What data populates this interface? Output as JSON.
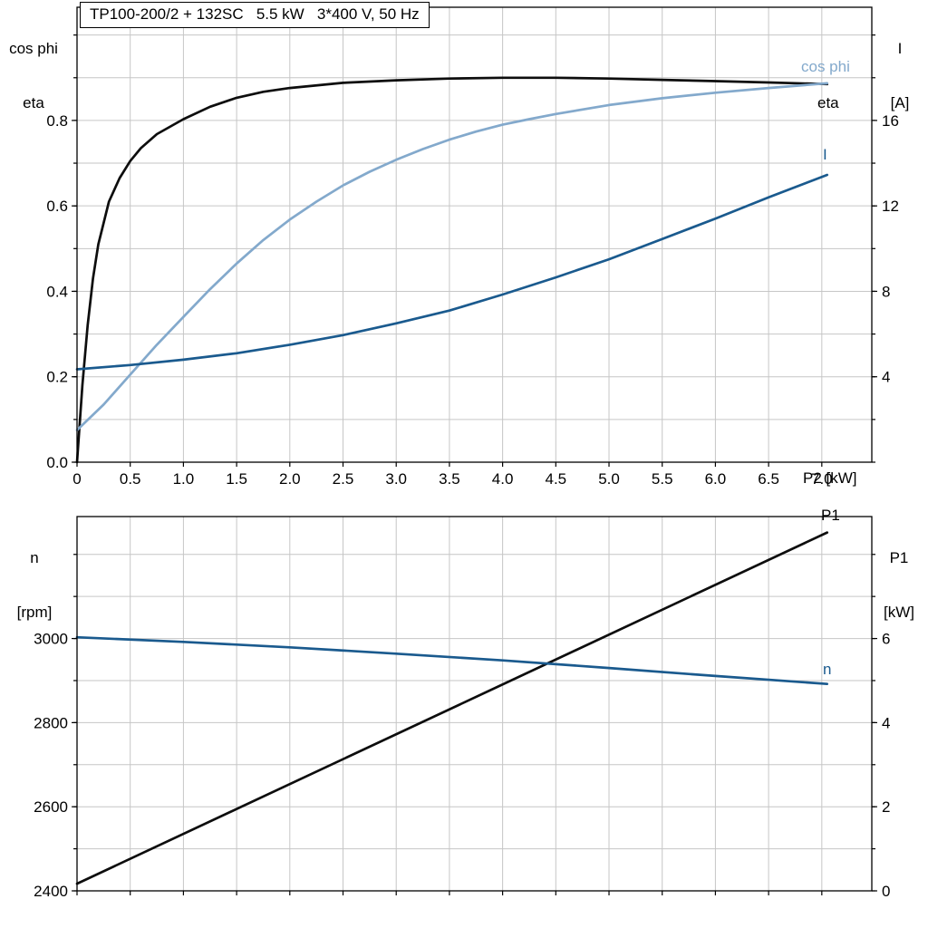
{
  "colors": {
    "black_curve": "#0d0d0d",
    "light_blue_curve": "#83a9cc",
    "dark_blue_curve": "#1a5a8e",
    "grid": "#c6c6c6",
    "frame": "#000000",
    "text": "#000000"
  },
  "chart_data": [
    {
      "type": "line",
      "title": "TP100-200/2 + 132SC   5.5 kW   3*400 V, 50 Hz",
      "axis_titles": {
        "left_line1": "cos phi",
        "left_line2": "eta",
        "right_line1": "I",
        "right_line2": "[A]",
        "x": "P2 [kW]"
      },
      "curve_labels": {
        "cos_phi": "cos phi",
        "eta": "eta",
        "current": "I"
      },
      "x": {
        "min": 0,
        "max": 7.47,
        "grid_step": 0.5,
        "show_labels": true,
        "ticks": [
          0,
          0.5,
          1,
          1.5,
          2,
          2.5,
          3,
          3.5,
          4,
          4.5,
          5,
          5.5,
          6,
          6.5,
          7
        ],
        "tick_labels": [
          "0",
          "0.5",
          "1.0",
          "1.5",
          "2.0",
          "2.5",
          "3.0",
          "3.5",
          "4.0",
          "4.5",
          "5.0",
          "5.5",
          "6.0",
          "6.5",
          "7.0"
        ]
      },
      "left_axis": {
        "min": 0,
        "max": 1.065,
        "grid_step": 0.1,
        "ticks": [
          0,
          0.2,
          0.4,
          0.6,
          0.8
        ],
        "tick_labels": [
          "0.0",
          "0.2",
          "0.4",
          "0.6",
          "0.8"
        ]
      },
      "right_axis": {
        "min": 0,
        "max": 21.3,
        "minor_step": 2,
        "ticks": [
          4,
          8,
          12,
          16
        ],
        "tick_labels": [
          "4",
          "8",
          "12",
          "16"
        ]
      },
      "series": [
        {
          "name": "eta",
          "axis": "left",
          "color_key": "black_curve",
          "points": [
            [
              0,
              0
            ],
            [
              0.05,
              0.18
            ],
            [
              0.1,
              0.32
            ],
            [
              0.15,
              0.43
            ],
            [
              0.2,
              0.51
            ],
            [
              0.3,
              0.61
            ],
            [
              0.4,
              0.665
            ],
            [
              0.5,
              0.705
            ],
            [
              0.6,
              0.735
            ],
            [
              0.75,
              0.768
            ],
            [
              1,
              0.803
            ],
            [
              1.25,
              0.832
            ],
            [
              1.5,
              0.853
            ],
            [
              1.75,
              0.867
            ],
            [
              2,
              0.876
            ],
            [
              2.5,
              0.888
            ],
            [
              3,
              0.894
            ],
            [
              3.5,
              0.898
            ],
            [
              4,
              0.9
            ],
            [
              4.5,
              0.9
            ],
            [
              5,
              0.898
            ],
            [
              5.5,
              0.895
            ],
            [
              6,
              0.892
            ],
            [
              6.5,
              0.889
            ],
            [
              7.05,
              0.885
            ]
          ]
        },
        {
          "name": "cos phi",
          "axis": "left",
          "color_key": "light_blue_curve",
          "points": [
            [
              0,
              0.075
            ],
            [
              0.25,
              0.135
            ],
            [
              0.5,
              0.205
            ],
            [
              0.75,
              0.275
            ],
            [
              1,
              0.34
            ],
            [
              1.25,
              0.405
            ],
            [
              1.5,
              0.465
            ],
            [
              1.75,
              0.52
            ],
            [
              2,
              0.568
            ],
            [
              2.25,
              0.61
            ],
            [
              2.5,
              0.648
            ],
            [
              2.75,
              0.68
            ],
            [
              3,
              0.708
            ],
            [
              3.25,
              0.733
            ],
            [
              3.5,
              0.755
            ],
            [
              3.75,
              0.774
            ],
            [
              4,
              0.79
            ],
            [
              4.25,
              0.803
            ],
            [
              4.5,
              0.815
            ],
            [
              5,
              0.836
            ],
            [
              5.5,
              0.852
            ],
            [
              6,
              0.865
            ],
            [
              6.5,
              0.876
            ],
            [
              7.05,
              0.887
            ]
          ]
        },
        {
          "name": "I",
          "axis": "right",
          "color_key": "dark_blue_curve",
          "points": [
            [
              0,
              4.35
            ],
            [
              0.5,
              4.55
            ],
            [
              1,
              4.8
            ],
            [
              1.5,
              5.1
            ],
            [
              2,
              5.5
            ],
            [
              2.5,
              5.95
            ],
            [
              3,
              6.5
            ],
            [
              3.5,
              7.1
            ],
            [
              4,
              7.85
            ],
            [
              4.5,
              8.65
            ],
            [
              5,
              9.5
            ],
            [
              5.5,
              10.45
            ],
            [
              6,
              11.4
            ],
            [
              6.5,
              12.4
            ],
            [
              7.05,
              13.45
            ]
          ]
        }
      ]
    },
    {
      "type": "line",
      "axis_titles": {
        "left_line1": "n",
        "left_line2": "[rpm]",
        "right_line1": "P1",
        "right_line2": "[kW]"
      },
      "curve_labels": {
        "p1": "P1",
        "n": "n"
      },
      "x": {
        "min": 0,
        "max": 7.47,
        "grid_step": 0.5,
        "show_labels": false,
        "ticks": [],
        "tick_labels": []
      },
      "left_axis": {
        "min": 2400,
        "max": 3290,
        "grid_step": 100,
        "ticks": [
          2400,
          2600,
          2800,
          3000
        ],
        "tick_labels": [
          "2400",
          "2600",
          "2800",
          "3000"
        ]
      },
      "right_axis": {
        "min": 0,
        "max": 8.9,
        "minor_step": 1,
        "ticks": [
          0,
          2,
          4,
          6
        ],
        "tick_labels": [
          "0",
          "2",
          "4",
          "6"
        ]
      },
      "series": [
        {
          "name": "P1",
          "axis": "right",
          "color_key": "black_curve",
          "points": [
            [
              0,
              0.17
            ],
            [
              7.05,
              8.52
            ]
          ]
        },
        {
          "name": "n",
          "axis": "left",
          "color_key": "dark_blue_curve",
          "points": [
            [
              0,
              3003
            ],
            [
              1,
              2992
            ],
            [
              2,
              2979
            ],
            [
              3,
              2964
            ],
            [
              4,
              2948
            ],
            [
              5,
              2930
            ],
            [
              6,
              2911
            ],
            [
              7.05,
              2892
            ]
          ]
        }
      ]
    }
  ]
}
